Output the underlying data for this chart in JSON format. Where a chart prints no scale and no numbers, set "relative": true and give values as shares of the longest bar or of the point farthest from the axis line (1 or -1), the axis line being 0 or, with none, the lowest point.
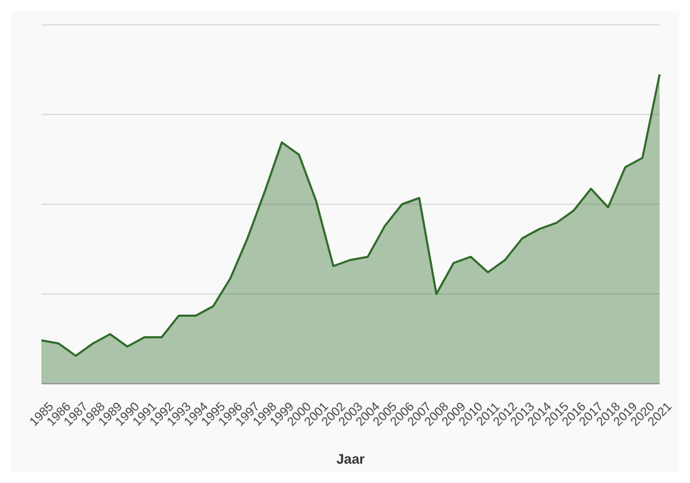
{
  "chart_data": {
    "type": "area",
    "xlabel": "Jaar",
    "relative": true,
    "grid": "y",
    "legend": false,
    "marker": "none",
    "categories": [
      "1985",
      "1986",
      "1987",
      "1988",
      "1989",
      "1990",
      "1991",
      "1992",
      "1993",
      "1994",
      "1995",
      "1996",
      "1997",
      "1998",
      "1999",
      "2000",
      "2001",
      "2002",
      "2003",
      "2004",
      "2005",
      "2006",
      "2007",
      "2008",
      "2009",
      "2010",
      "2011",
      "2012",
      "2013",
      "2014",
      "2015",
      "2016",
      "2017",
      "2018",
      "2019",
      "2020",
      "2021"
    ],
    "series": [
      {
        "color": "#2e6b28",
        "values": [
          0.14,
          0.13,
          0.09,
          0.13,
          0.16,
          0.12,
          0.15,
          0.15,
          0.22,
          0.22,
          0.25,
          0.34,
          0.47,
          0.62,
          0.78,
          0.74,
          0.59,
          0.38,
          0.4,
          0.41,
          0.51,
          0.58,
          0.6,
          0.29,
          0.39,
          0.41,
          0.36,
          0.4,
          0.47,
          0.5,
          0.52,
          0.56,
          0.63,
          0.57,
          0.7,
          0.73,
          1
        ]
      }
    ]
  }
}
